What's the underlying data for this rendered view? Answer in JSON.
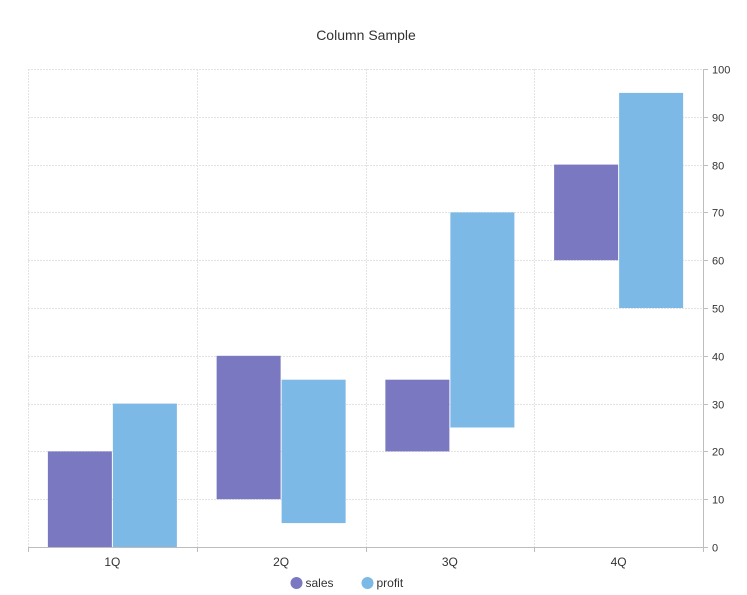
{
  "chart_data": {
    "type": "bar",
    "subtype": "floating-range-column",
    "title": "Column Sample",
    "categories": [
      "1Q",
      "2Q",
      "3Q",
      "4Q"
    ],
    "series": [
      {
        "name": "sales",
        "color": "#7b78c2",
        "ranges": [
          [
            0,
            20
          ],
          [
            10,
            40
          ],
          [
            20,
            35
          ],
          [
            60,
            80
          ]
        ]
      },
      {
        "name": "profit",
        "color": "#7cb9e6",
        "ranges": [
          [
            0,
            30
          ],
          [
            5,
            35
          ],
          [
            25,
            70
          ],
          [
            50,
            95
          ]
        ]
      }
    ],
    "y_axis": {
      "position": "right",
      "min": 0,
      "max": 100,
      "step": 10,
      "ticks": [
        "0",
        "10",
        "20",
        "30",
        "40",
        "50",
        "60",
        "70",
        "80",
        "90",
        "100"
      ]
    },
    "grid": true,
    "legend": "bottom-center",
    "xlabel": "",
    "ylabel": ""
  },
  "colors": {
    "grid": "#e3e3e3",
    "axis": "#bdbdbd",
    "text": "#333333"
  }
}
